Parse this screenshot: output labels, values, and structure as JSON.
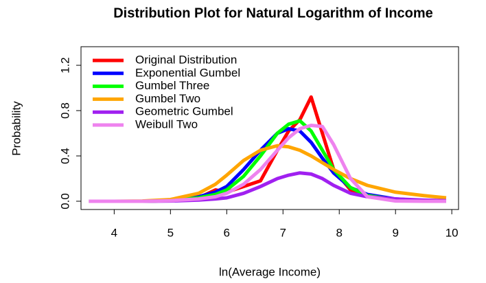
{
  "chart_data": {
    "type": "line",
    "title": "Distribution Plot for Natural Logarithm of Income",
    "x_label": "ln(Average Income)",
    "y_label": "Probability",
    "x": [
      3.55,
      4,
      4.5,
      5,
      5.5,
      5.8,
      6,
      6.3,
      6.6,
      6.9,
      7.1,
      7.3,
      7.5,
      7.7,
      7.9,
      8.2,
      8.5,
      9,
      9.5,
      9.9
    ],
    "series": [
      {
        "name": "Original Distribution",
        "color": "#ff0000",
        "values": [
          0,
          0,
          0,
          0.005,
          0.03,
          0.1,
          0.08,
          0.13,
          0.18,
          0.45,
          0.62,
          0.72,
          0.92,
          0.6,
          0.28,
          0.1,
          0.04,
          0.01,
          0.005,
          0
        ]
      },
      {
        "name": "Exponential Gumbel",
        "color": "#0000ff",
        "values": [
          0,
          0,
          0,
          0.01,
          0.04,
          0.08,
          0.13,
          0.28,
          0.45,
          0.6,
          0.64,
          0.62,
          0.52,
          0.38,
          0.25,
          0.12,
          0.06,
          0.02,
          0.005,
          0.001
        ]
      },
      {
        "name": "Gumbel Three",
        "color": "#00ff00",
        "values": [
          0,
          0,
          0,
          0.005,
          0.03,
          0.06,
          0.1,
          0.22,
          0.4,
          0.6,
          0.68,
          0.71,
          0.62,
          0.45,
          0.28,
          0.12,
          0.05,
          0.015,
          0.003,
          0.001
        ]
      },
      {
        "name": "Gumbel Two",
        "color": "#ffa500",
        "values": [
          0,
          0,
          0.002,
          0.015,
          0.07,
          0.15,
          0.23,
          0.36,
          0.45,
          0.49,
          0.48,
          0.45,
          0.4,
          0.34,
          0.28,
          0.2,
          0.14,
          0.08,
          0.05,
          0.03
        ]
      },
      {
        "name": "Geometric Gumbel",
        "color": "#a020f0",
        "values": [
          0,
          0,
          0,
          0.002,
          0.01,
          0.02,
          0.03,
          0.07,
          0.13,
          0.2,
          0.23,
          0.25,
          0.24,
          0.2,
          0.14,
          0.07,
          0.04,
          0.02,
          0.01,
          0.005
        ]
      },
      {
        "name": "Weibull Two",
        "color": "#ee82ee",
        "values": [
          0,
          0,
          0,
          0.005,
          0.02,
          0.04,
          0.07,
          0.15,
          0.28,
          0.45,
          0.56,
          0.64,
          0.67,
          0.66,
          0.5,
          0.2,
          0.04,
          0.002,
          0,
          0
        ]
      }
    ],
    "xlim": [
      3.41,
      10.12
    ],
    "ylim": [
      -0.073,
      1.364
    ],
    "xticks": [
      4,
      5,
      6,
      7,
      8,
      9,
      10
    ],
    "yticks": [
      {
        "value": 0,
        "label": "0.0"
      },
      0.4,
      0.8,
      1.2
    ],
    "legend": "top-left"
  }
}
